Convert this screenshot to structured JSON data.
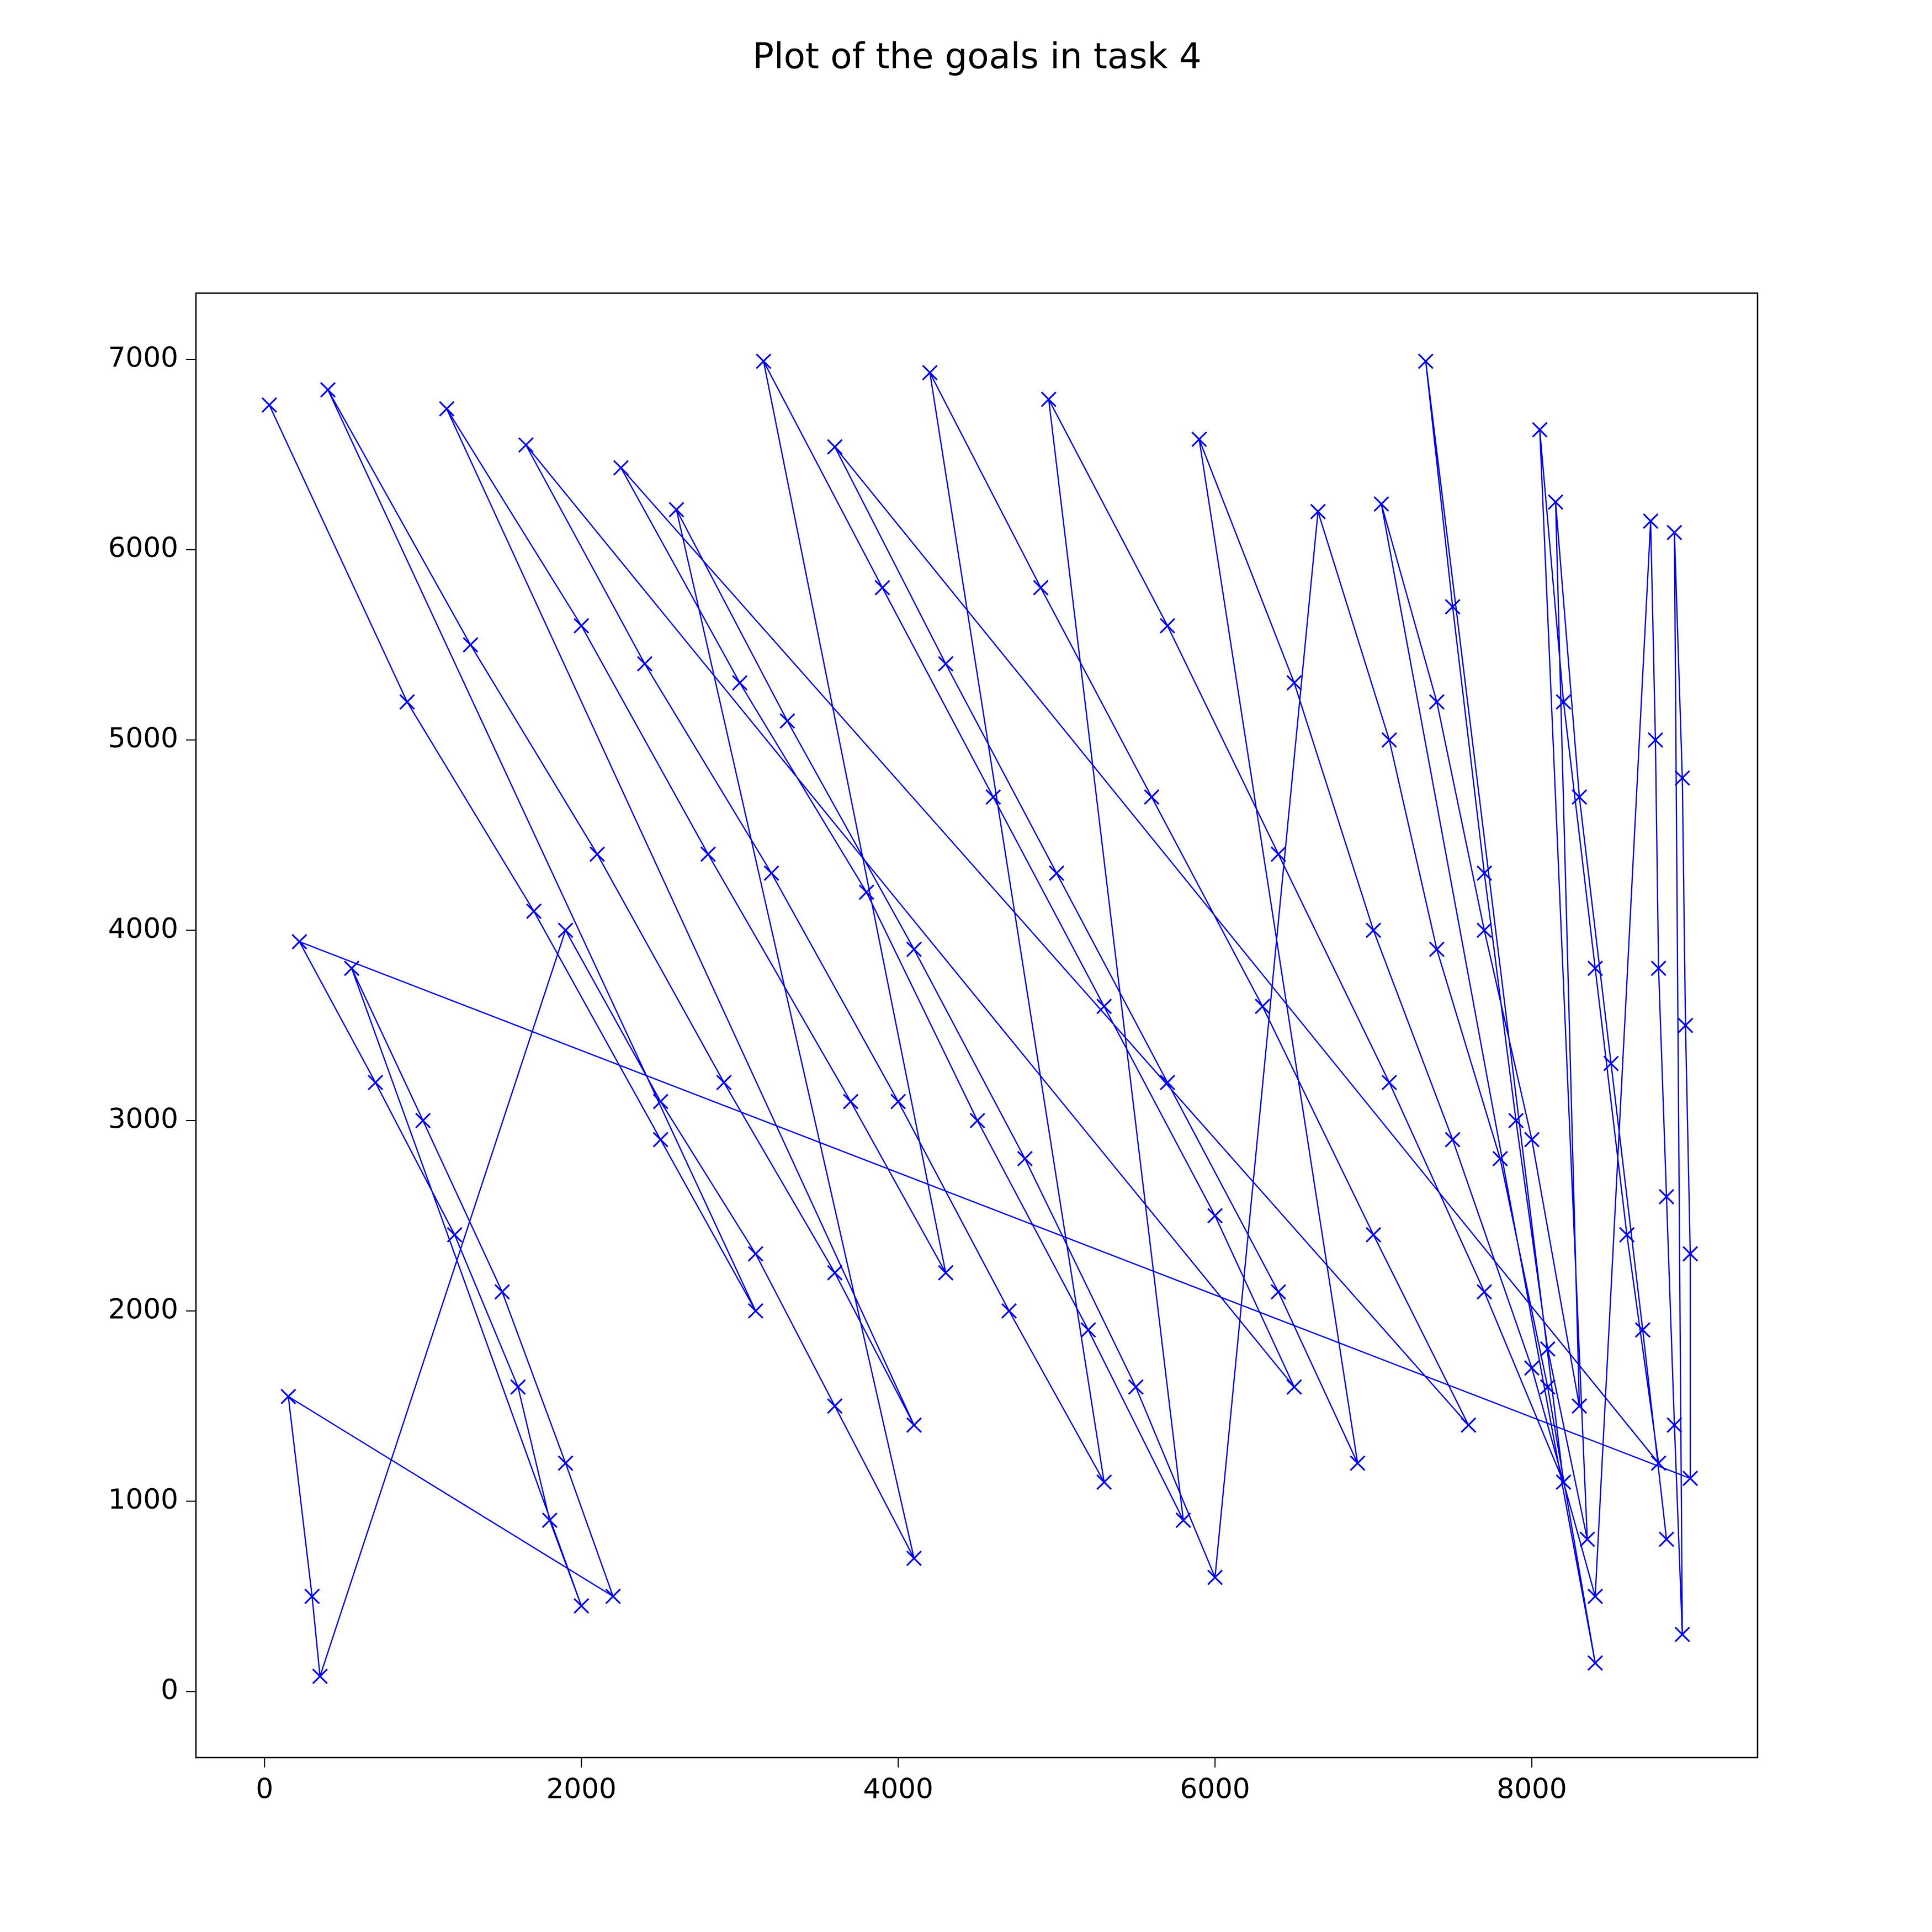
{
  "chart_data": {
    "type": "line",
    "title": "Plot of the goals in task 4",
    "color": "#0000ff",
    "marker": "x",
    "grid": false,
    "x": [
      30,
      900,
      1700,
      2500,
      3100,
      400,
      1300,
      2100,
      2900,
      3600,
      4100,
      1150,
      2000,
      2800,
      3700,
      4300,
      3150,
      3900,
      4600,
      5300,
      6000,
      6500,
      1650,
      2400,
      3200,
      4000,
      4700,
      5300,
      4200,
      4900,
      5600,
      6300,
      7000,
      7600,
      2250,
      3000,
      3800,
      4500,
      5200,
      5800,
      4950,
      5700,
      6400,
      7100,
      7700,
      8200,
      7330,
      7500,
      7700,
      7900,
      8100,
      8350,
      8050,
      8200,
      8400,
      8600,
      8800,
      3600,
      4300,
      5000,
      5700,
      6400,
      6900,
      5900,
      6500,
      7000,
      7500,
      8000,
      8400,
      8750,
      8780,
      8800,
      8850,
      8900,
      8950,
      8900,
      8950,
      8970,
      9000,
      9000,
      220,
      700,
      1200,
      1600,
      1800,
      2000,
      550,
      1000,
      1500,
      1900,
      2200,
      150,
      300,
      350,
      1900,
      2500,
      3100,
      3600,
      4100,
      2600,
      3300,
      4100,
      4800,
      5500,
      6000,
      6650,
      7100,
      7400,
      7800,
      8100,
      8400,
      7050,
      7400,
      7700,
      8000,
      8300,
      8150,
      8300,
      8500,
      8700,
      8850
    ],
    "values": [
      6760,
      5200,
      4100,
      2900,
      2000,
      6840,
      5500,
      4400,
      3200,
      2200,
      1400,
      6740,
      5600,
      4400,
      3100,
      2200,
      6990,
      5800,
      4700,
      3600,
      2500,
      1600,
      6550,
      5400,
      4300,
      3100,
      2000,
      1100,
      6930,
      5800,
      4700,
      3600,
      2400,
      1400,
      6430,
      5300,
      4200,
      3000,
      1900,
      900,
      6790,
      5600,
      4400,
      3200,
      2100,
      1100,
      6990,
      5700,
      4300,
      3000,
      1800,
      800,
      6630,
      5200,
      3800,
      2400,
      1200,
      6540,
      5400,
      4300,
      3200,
      2100,
      1200,
      6580,
      5300,
      4000,
      2900,
      1700,
      500,
      6150,
      5000,
      3800,
      2600,
      1400,
      300,
      6090,
      4800,
      3500,
      2300,
      1120,
      3940,
      3200,
      2400,
      1600,
      900,
      450,
      3800,
      3000,
      2100,
      1200,
      500,
      1550,
      500,
      80,
      4000,
      3100,
      2300,
      1500,
      700,
      6210,
      5100,
      3900,
      2800,
      1600,
      600,
      6200,
      5000,
      3900,
      2800,
      1600,
      150,
      6240,
      5200,
      4000,
      2900,
      1500,
      6250,
      4700,
      3300,
      1900,
      800
    ],
    "xlim": [
      -433,
      9425
    ],
    "ylim": [
      -347,
      7348
    ],
    "xticks": [
      0,
      2000,
      4000,
      6000,
      8000
    ],
    "yticks": [
      0,
      1000,
      2000,
      3000,
      4000,
      5000,
      6000,
      7000
    ]
  }
}
